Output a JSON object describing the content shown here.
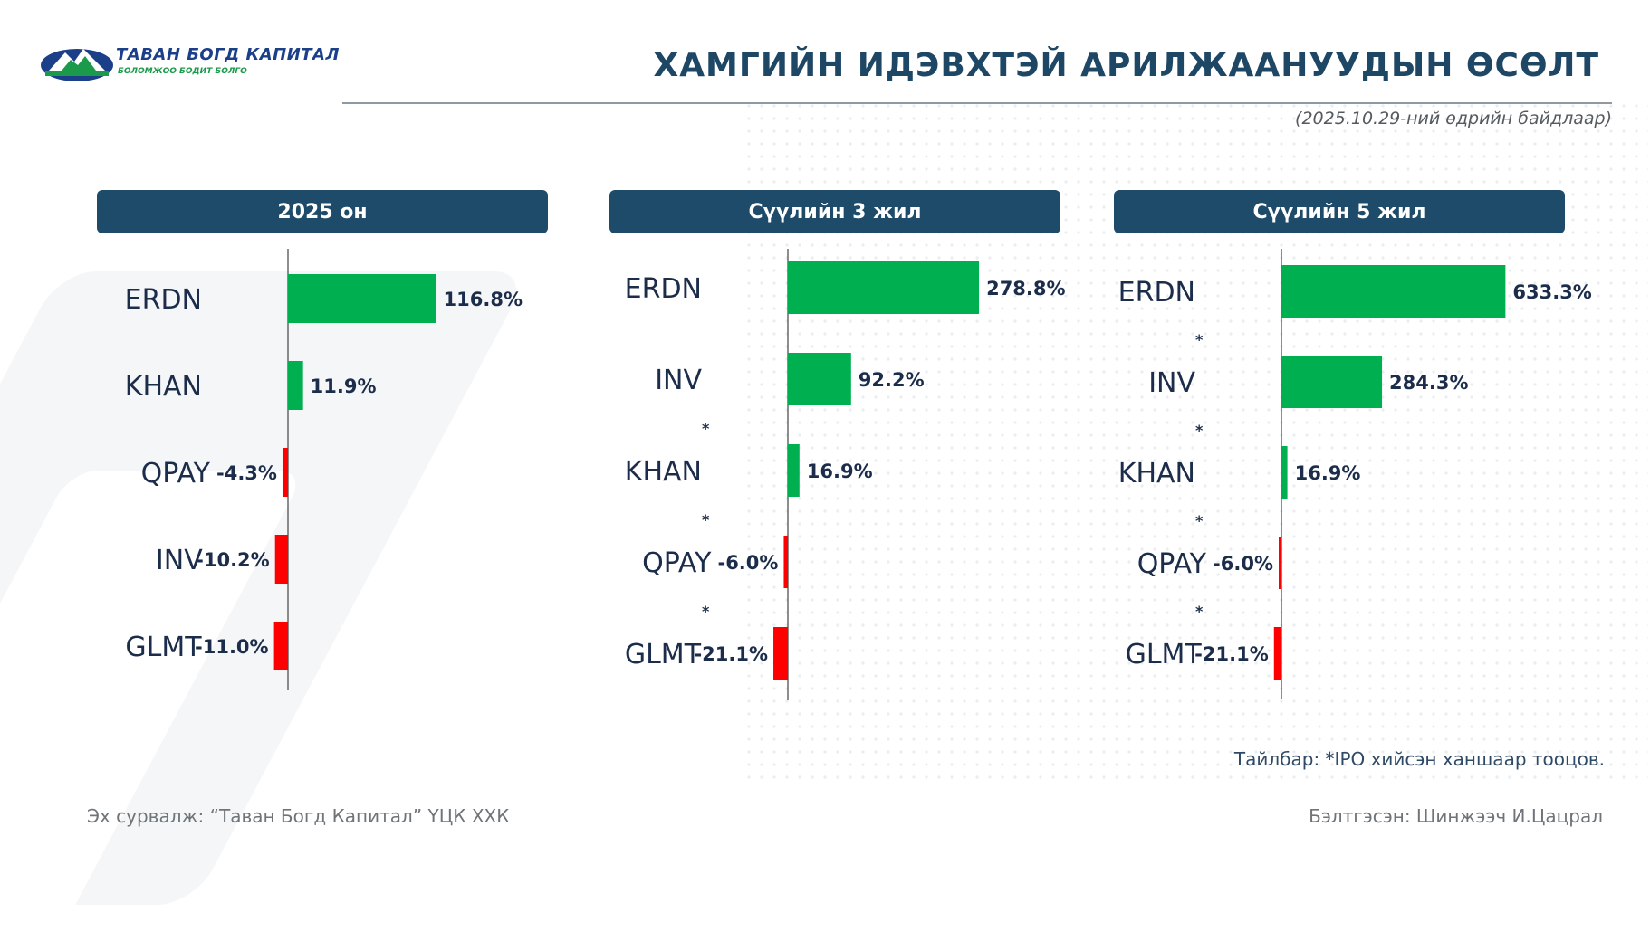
{
  "logo": {
    "name": "ТАВАН БОГД КАПИТАЛ",
    "slogan": "БОЛОМЖОО БОДИТ БОЛГО"
  },
  "title": "ХАМГИЙН ИДЭВХТЭЙ АРИЛЖААНУУДЫН ӨСӨЛТ",
  "date_note": "(2025.10.29-ний өдрийн байдлаар)",
  "colors": {
    "positive": "#00b050",
    "negative": "#ff0000",
    "header_bg": "#1f4b6a",
    "title": "#1e4766"
  },
  "footnote": "Тайлбар: *IPO хийсэн ханшаар тооцов.",
  "source": "Эх сурвалж: “Таван Богд Капитал” ҮЦК ХХК",
  "prepared_by": "Бэлтгэсэн: Шинжээч И.Цацрал",
  "chart_data": [
    {
      "type": "bar",
      "title": "2025 он",
      "categories": [
        "ERDN",
        "KHAN",
        "QPAY",
        "INV",
        "GLMT"
      ],
      "values": [
        116.8,
        11.9,
        -4.3,
        -10.2,
        -11.0
      ],
      "labels": [
        "116.8%",
        "11.9%",
        "-4.3%",
        "-10.2%",
        "-11.0%"
      ],
      "ipo_marked": [
        false,
        false,
        false,
        false,
        false
      ],
      "scale_max": 120
    },
    {
      "type": "bar",
      "title": "Сүүлийн 3 жил",
      "categories": [
        "ERDN",
        "INV",
        "KHAN",
        "QPAY",
        "GLMT"
      ],
      "values": [
        278.8,
        92.2,
        16.9,
        -6.0,
        -21.1
      ],
      "labels": [
        "278.8%",
        "92.2%",
        "16.9%",
        "-6.0%",
        "-21.1%"
      ],
      "ipo_marked": [
        false,
        false,
        true,
        true,
        true
      ],
      "scale_max": 280
    },
    {
      "type": "bar",
      "title": "Сүүлийн 5 жил",
      "categories": [
        "ERDN",
        "INV",
        "KHAN",
        "QPAY",
        "GLMT"
      ],
      "values": [
        633.3,
        284.3,
        16.9,
        -6.0,
        -21.1
      ],
      "labels": [
        "633.3%",
        "284.3%",
        "16.9%",
        "-6.0%",
        "-21.1%"
      ],
      "ipo_marked": [
        false,
        true,
        true,
        true,
        true
      ],
      "scale_max": 640
    }
  ]
}
